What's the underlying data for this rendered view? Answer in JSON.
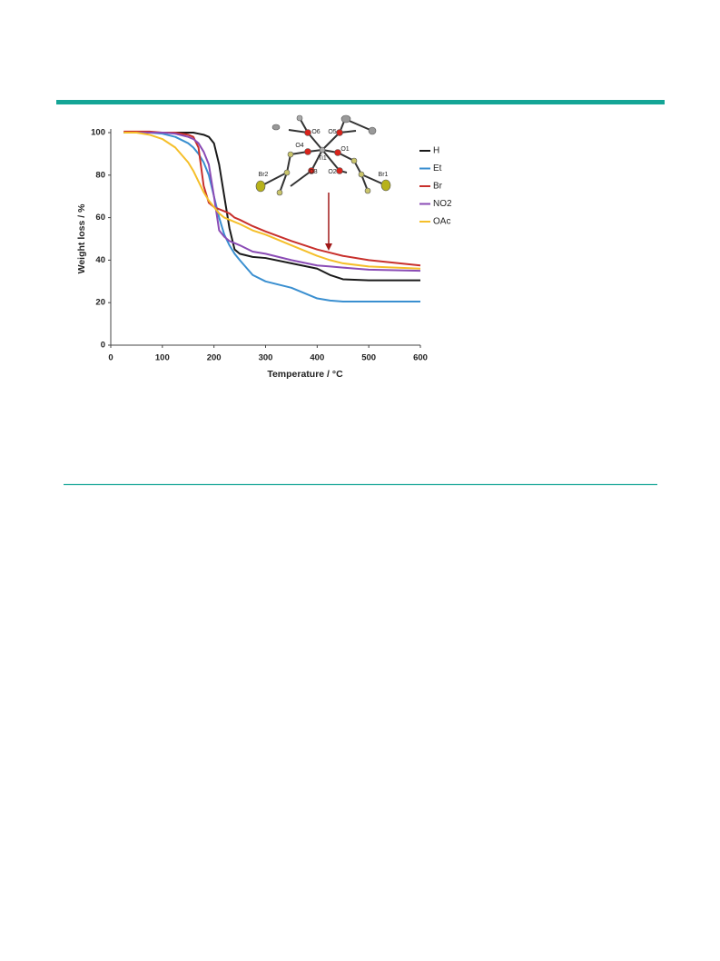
{
  "chart_data": {
    "type": "line",
    "xlabel": "Temperature / °C",
    "ylabel": "Weight loss / %",
    "x": [
      25,
      50,
      75,
      100,
      125,
      150,
      160,
      170,
      180,
      190,
      200,
      210,
      220,
      230,
      240,
      250,
      275,
      300,
      350,
      400,
      425,
      450,
      500,
      600
    ],
    "series": [
      {
        "name": "H",
        "color": "#1a1a1a",
        "values": [
          100,
          100,
          100,
          100,
          100,
          100,
          100,
          99.5,
          99,
          98,
          95,
          85,
          70,
          55,
          45,
          43,
          41.5,
          41,
          38.5,
          36,
          33,
          31,
          30.5,
          30.5
        ]
      },
      {
        "name": "Et",
        "color": "#3a8fd0",
        "values": [
          100,
          100,
          100,
          99.5,
          98,
          95,
          93,
          90,
          86,
          80,
          70,
          60,
          52,
          47,
          43,
          40,
          33,
          30,
          27,
          22,
          21,
          20.5,
          20.5,
          20.5
        ]
      },
      {
        "name": "Br",
        "color": "#c8302c",
        "values": [
          100.5,
          100.5,
          100.5,
          100,
          100,
          99,
          98,
          93,
          75,
          67,
          65,
          64,
          63,
          62,
          60,
          59,
          56,
          53.5,
          49,
          45,
          43.5,
          42,
          40,
          37.5
        ]
      },
      {
        "name": "NO2",
        "color": "#8a4bb5",
        "values": [
          100,
          100,
          100,
          100,
          99.5,
          98,
          97,
          95,
          91,
          85,
          70,
          54,
          51,
          49,
          48,
          47,
          44,
          43,
          40,
          37.5,
          37,
          36.5,
          35.5,
          35
        ]
      },
      {
        "name": "OAc",
        "color": "#f5bf2a",
        "values": [
          100,
          100,
          99,
          97,
          93,
          86,
          82,
          77,
          72,
          68,
          65,
          62,
          60,
          59,
          58,
          57,
          54,
          52,
          47,
          42,
          40,
          38.5,
          37,
          36
        ]
      }
    ],
    "xlim": [
      0,
      600
    ],
    "xticks": [
      0,
      100,
      200,
      300,
      400,
      500,
      600
    ],
    "ylim": [
      0,
      100
    ],
    "yticks": [
      0,
      20,
      40,
      60,
      80,
      100
    ],
    "inset_labels": [
      "O6",
      "O5",
      "O4",
      "O1",
      "Ti1",
      "O3",
      "O2",
      "Br2",
      "Br1"
    ]
  }
}
